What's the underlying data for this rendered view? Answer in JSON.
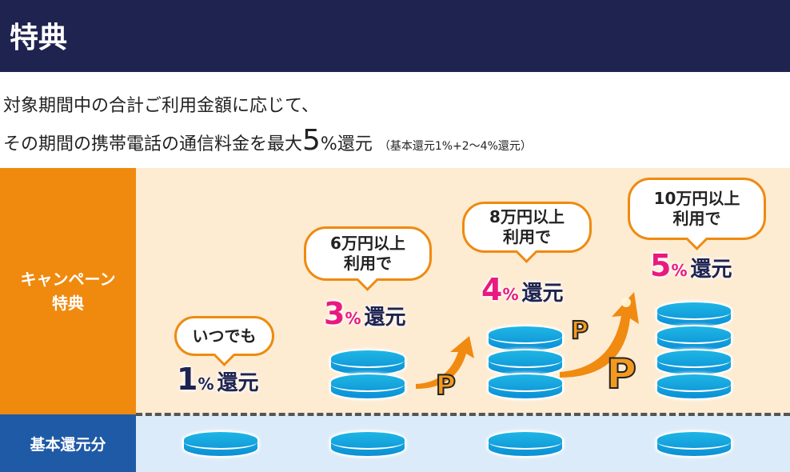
{
  "header": {
    "title": "特典"
  },
  "intro": {
    "line1": "対象期間中の合計ご利用金額に応じて、",
    "line2_prefix": "その期間の携帯電話の通信料金を最大",
    "line2_num": "5",
    "line2_suffix": "%還元",
    "line2_note": "（基本還元1%+2〜4%還元）"
  },
  "rows": {
    "campaign": "キャンペーン\n特典",
    "base": "基本還元分"
  },
  "tiers": [
    {
      "bubble1": "いつでも",
      "bubble2": "",
      "num": "1",
      "pct": "%",
      "label": "還元",
      "stack": 0
    },
    {
      "bubble1": "6万円以上",
      "bubble2": "利用で",
      "num": "3",
      "pct": "%",
      "label": "還元",
      "stack": 2
    },
    {
      "bubble1": "8万円以上",
      "bubble2": "利用で",
      "num": "4",
      "pct": "%",
      "label": "還元",
      "stack": 3
    },
    {
      "bubble1": "10万円以上",
      "bubble2": "利用で",
      "num": "5",
      "pct": "%",
      "label": "還元",
      "stack": 4
    }
  ],
  "point_icon": "P",
  "colors": {
    "header": "#1f2350",
    "orange": "#ef8a0e",
    "blue": "#1f5aa6",
    "pink": "#e8197f",
    "coin": "#1fb6e4"
  }
}
